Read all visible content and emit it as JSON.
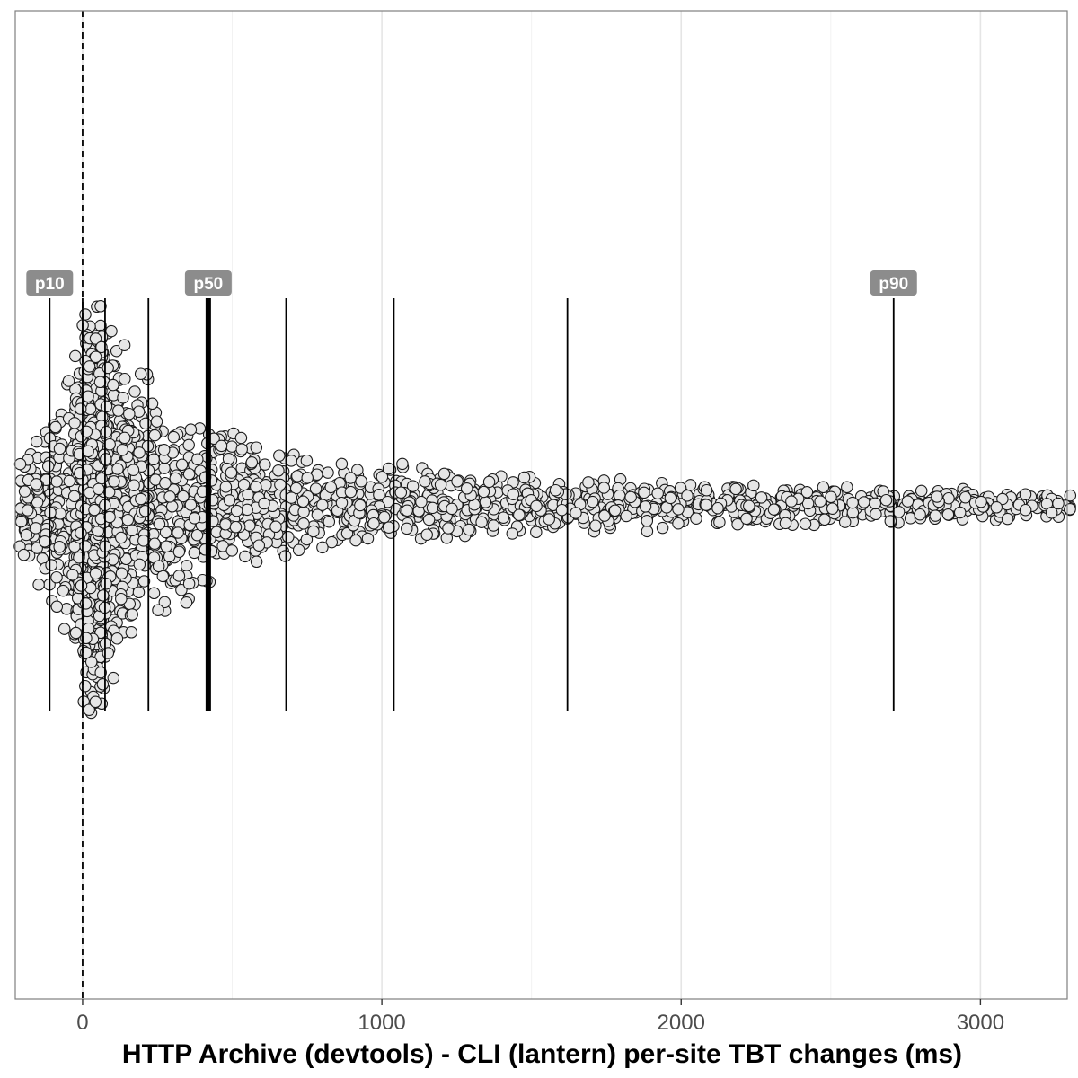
{
  "chart_data": {
    "type": "scatter",
    "subtype": "beeswarm",
    "title": "",
    "xlabel": "HTTP Archive (devtools) - CLI (lantern) per-site TBT changes (ms)",
    "ylabel": "",
    "xlim": [
      -225,
      3290
    ],
    "x_ticks": [
      0,
      1000,
      2000,
      3000
    ],
    "x_tick_labels": [
      "0",
      "1000",
      "2000",
      "3000"
    ],
    "grid": "vertical major gridlines",
    "reference_line": {
      "x": 0,
      "style": "dashed"
    },
    "percentile_lines": [
      {
        "percentile": 10,
        "x": -110,
        "label": "p10"
      },
      {
        "percentile": 20,
        "x": 0,
        "label": ""
      },
      {
        "percentile": 30,
        "x": 75,
        "label": ""
      },
      {
        "percentile": 40,
        "x": 220,
        "label": ""
      },
      {
        "percentile": 50,
        "x": 420,
        "label": "p50"
      },
      {
        "percentile": 60,
        "x": 680,
        "label": ""
      },
      {
        "percentile": 70,
        "x": 1040,
        "label": ""
      },
      {
        "percentile": 80,
        "x": 1620,
        "label": ""
      },
      {
        "percentile": 90,
        "x": 2710,
        "label": "p90"
      }
    ],
    "distribution": "right-skewed; densest near 0 ms, long tail beyond 3000 ms",
    "point_style": {
      "fill": "#e6e6e6",
      "stroke": "#1a1a1a"
    }
  },
  "colors": {
    "panel_border": "#7f7f7f",
    "grid": "#e5e5e5",
    "line": "#000000",
    "label_bg": "#8c8c8c",
    "label_text": "#ffffff",
    "point_fill": "#e6e6e6",
    "point_stroke": "#1a1a1a"
  }
}
